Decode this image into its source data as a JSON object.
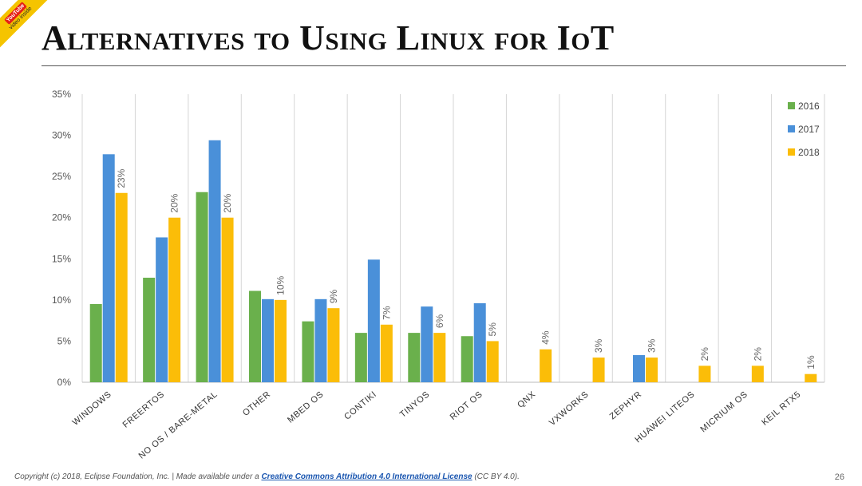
{
  "badge": {
    "brand": "YouTube",
    "text": "video inside"
  },
  "title": "Alternatives to Using Linux for IoT",
  "footer": {
    "prefix": "Copyright (c) 2018, Eclipse Foundation, Inc. | Made available under a ",
    "link_text": "Creative Commons Attribution 4.0 International License",
    "suffix": " (CC BY 4.0)."
  },
  "page_number": "26",
  "chart_data": {
    "type": "bar",
    "title": "",
    "xlabel": "",
    "ylabel": "",
    "ylim": [
      0,
      35
    ],
    "yticks": [
      "0%",
      "5%",
      "10%",
      "15%",
      "20%",
      "25%",
      "30%",
      "35%"
    ],
    "categories": [
      "WINDOWS",
      "FREERTOS",
      "NO OS / BARE-METAL",
      "OTHER",
      "MBED OS",
      "CONTIKI",
      "TINYOS",
      "RIOT OS",
      "QNX",
      "VXWORKS",
      "ZEPHYR",
      "HUAWEI LITEOS",
      "MICRIUM OS",
      "KEIL RTX5"
    ],
    "series": [
      {
        "name": "2016",
        "color": "#6ab04c",
        "values": [
          9.5,
          12.7,
          23.1,
          11.1,
          7.4,
          6.0,
          6.0,
          5.6,
          null,
          null,
          null,
          null,
          null,
          null
        ]
      },
      {
        "name": "2017",
        "color": "#4a90d9",
        "values": [
          27.7,
          17.6,
          29.4,
          10.1,
          10.1,
          14.9,
          9.2,
          9.6,
          null,
          null,
          3.3,
          null,
          null,
          null
        ]
      },
      {
        "name": "2018",
        "color": "#fbbd08",
        "values": [
          23,
          20,
          20,
          10,
          9,
          7,
          6,
          5,
          4,
          3,
          3,
          2,
          2,
          1
        ]
      }
    ],
    "data_labels": {
      "series": "2018",
      "labels": [
        "23%",
        "20%",
        "20%",
        "10%",
        "9%",
        "7%",
        "6%",
        "5%",
        "4%",
        "3%",
        "3%",
        "2%",
        "2%",
        "1%"
      ]
    },
    "legend": "top-right",
    "grid": "vertical"
  }
}
